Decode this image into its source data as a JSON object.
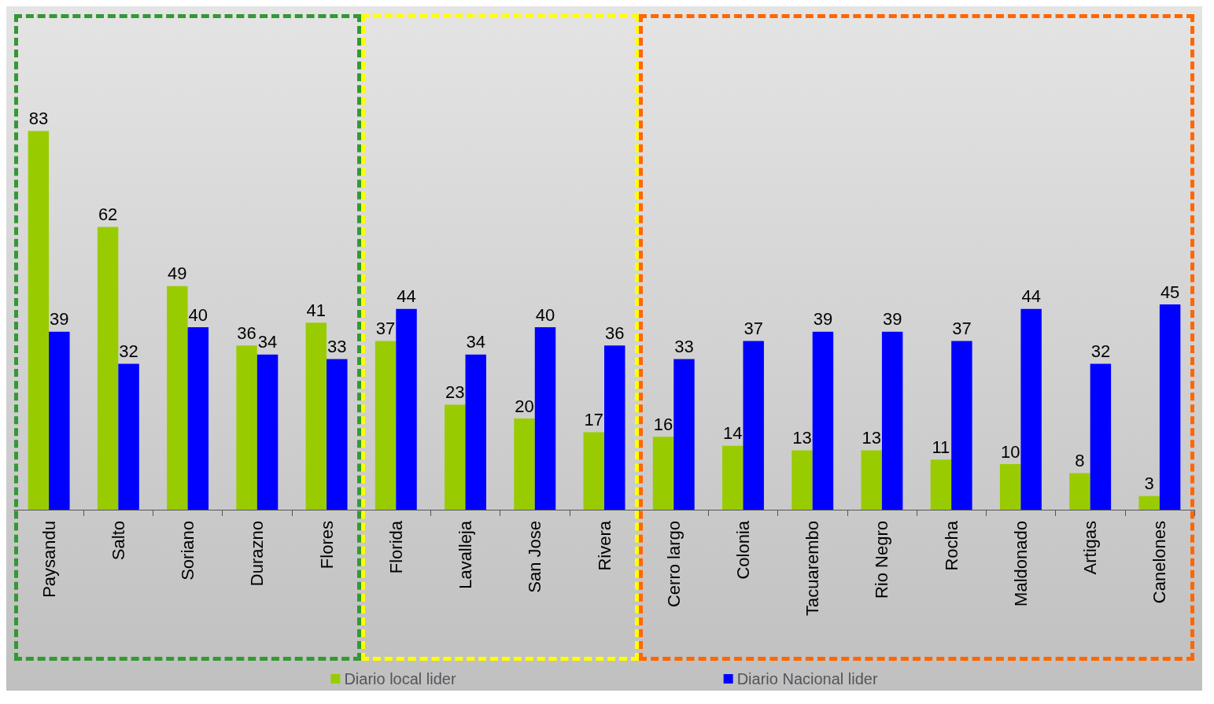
{
  "chart_data": {
    "type": "bar",
    "categories": [
      "Paysandu",
      "Salto",
      "Soriano",
      "Durazno",
      "Flores",
      "Florida",
      "Lavalleja",
      "San Jose",
      "Rivera",
      "Cerro largo",
      "Colonia",
      "Tacuarembo",
      "Rio Negro",
      "Rocha",
      "Maldonado",
      "Artigas",
      "Canelones"
    ],
    "series": [
      {
        "name": "Diario local lider",
        "color": "#99cc00",
        "values": [
          83,
          62,
          49,
          36,
          41,
          37,
          23,
          20,
          17,
          16,
          14,
          13,
          13,
          11,
          10,
          8,
          3
        ]
      },
      {
        "name": "Diario Nacional lider",
        "color": "#0000ff",
        "values": [
          39,
          32,
          40,
          34,
          33,
          44,
          34,
          40,
          36,
          33,
          37,
          39,
          39,
          37,
          44,
          32,
          45
        ]
      }
    ],
    "data_labels": true,
    "legend": "bottom",
    "grid": false
  }
}
